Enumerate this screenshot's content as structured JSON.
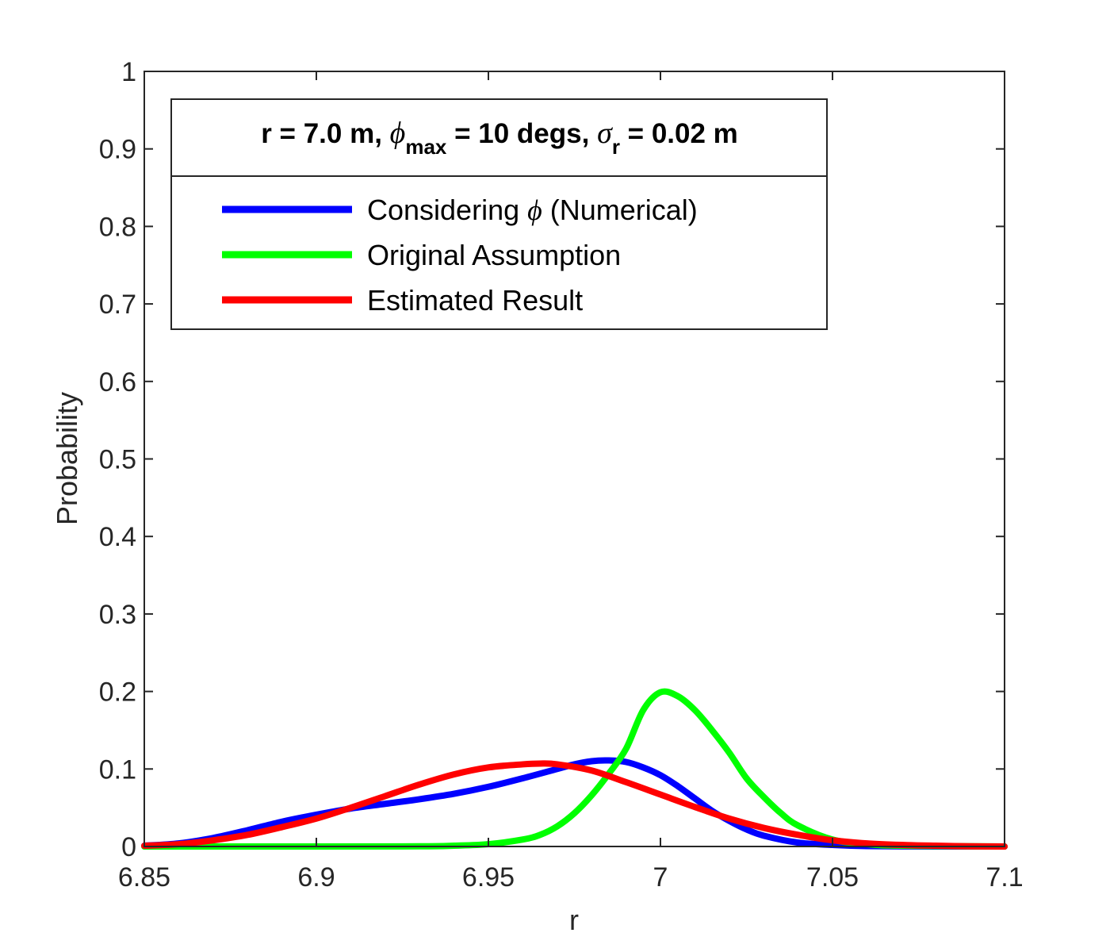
{
  "chart_data": {
    "type": "line",
    "xlabel": "r",
    "ylabel": "Probability",
    "xlim": [
      6.85,
      7.1
    ],
    "ylim": [
      0,
      1
    ],
    "xticks": [
      6.85,
      6.9,
      6.95,
      7.0,
      7.05,
      7.1
    ],
    "xtick_labels": [
      "6.85",
      "6.9",
      "6.95",
      "7",
      "7.05",
      "7.1"
    ],
    "yticks": [
      0,
      0.1,
      0.2,
      0.3,
      0.4,
      0.5,
      0.6,
      0.7,
      0.8,
      0.9,
      1
    ],
    "ytick_labels": [
      "0",
      "0.1",
      "0.2",
      "0.3",
      "0.4",
      "0.5",
      "0.6",
      "0.7",
      "0.8",
      "0.9",
      "1"
    ],
    "grid": false,
    "legend": {
      "placement": "top-left",
      "title": {
        "part1": "r = 7.0 m, ",
        "sym1": "ϕ",
        "sub1": "max",
        "part2": " = 10 degs, ",
        "sym2": "σ",
        "sub2": "r",
        "part3": " = 0.02 m"
      }
    },
    "series": [
      {
        "name": "Considering ϕ (Numerical)",
        "label_pre": "Considering ",
        "label_sym": "ϕ",
        "label_post": " (Numerical)",
        "color": "#0000ff",
        "x": [
          6.85,
          6.86,
          6.87,
          6.88,
          6.89,
          6.9,
          6.91,
          6.92,
          6.93,
          6.94,
          6.95,
          6.96,
          6.97,
          6.975,
          6.98,
          6.985,
          6.99,
          6.995,
          7.0,
          7.005,
          7.01,
          7.015,
          7.02,
          7.025,
          7.03,
          7.04,
          7.05,
          7.06,
          7.08,
          7.1
        ],
        "y": [
          0.001,
          0.004,
          0.011,
          0.021,
          0.032,
          0.041,
          0.049,
          0.055,
          0.061,
          0.068,
          0.077,
          0.088,
          0.1,
          0.106,
          0.11,
          0.111,
          0.109,
          0.102,
          0.092,
          0.078,
          0.062,
          0.046,
          0.033,
          0.022,
          0.014,
          0.005,
          0.002,
          0.0005,
          0.0,
          0.0
        ]
      },
      {
        "name": "Original Assumption",
        "color": "#00ff00",
        "x": [
          6.85,
          6.9,
          6.93,
          6.94,
          6.95,
          6.96,
          6.965,
          6.97,
          6.975,
          6.98,
          6.985,
          6.99,
          6.995,
          7.0,
          7.005,
          7.01,
          7.015,
          7.02,
          7.025,
          7.03,
          7.035,
          7.04,
          7.05,
          7.06,
          7.07,
          7.1
        ],
        "y": [
          0.0,
          0.0,
          0.0002,
          0.001,
          0.003,
          0.009,
          0.015,
          0.026,
          0.043,
          0.066,
          0.094,
          0.126,
          0.176,
          0.199,
          0.194,
          0.176,
          0.15,
          0.121,
          0.088,
          0.064,
          0.043,
          0.027,
          0.009,
          0.003,
          0.001,
          0.0
        ]
      },
      {
        "name": "Estimated Result",
        "color": "#ff0000",
        "x": [
          6.85,
          6.86,
          6.87,
          6.88,
          6.89,
          6.9,
          6.91,
          6.92,
          6.93,
          6.94,
          6.95,
          6.96,
          6.965,
          6.97,
          6.98,
          6.99,
          7.0,
          7.01,
          7.02,
          7.03,
          7.04,
          7.05,
          7.06,
          7.07,
          7.08,
          7.09,
          7.1
        ],
        "y": [
          0.001,
          0.003,
          0.008,
          0.015,
          0.025,
          0.036,
          0.05,
          0.065,
          0.08,
          0.093,
          0.102,
          0.106,
          0.107,
          0.106,
          0.098,
          0.083,
          0.067,
          0.051,
          0.036,
          0.024,
          0.015,
          0.008,
          0.004,
          0.002,
          0.001,
          0.0003,
          0.0
        ]
      }
    ]
  }
}
